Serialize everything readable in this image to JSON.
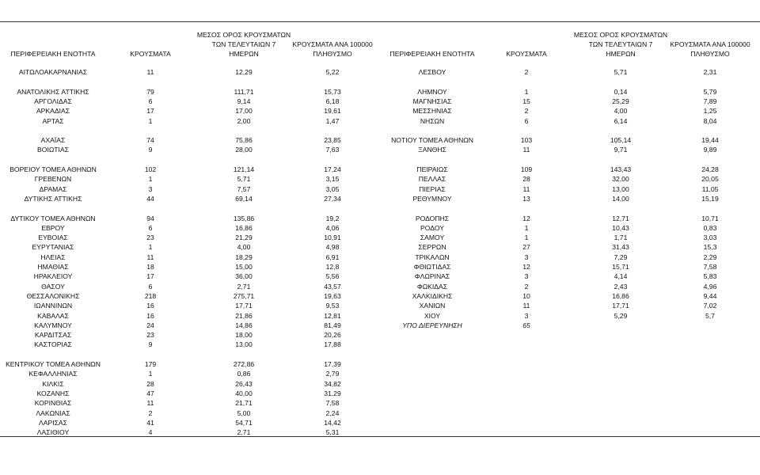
{
  "tables": [
    {
      "header": [
        [
          "ΠΕΡΙΦΕΡΕΙΑΚΗ ΕΝΟΤΗΤΑ"
        ],
        [
          "ΚΡΟΥΣΜΑΤΑ"
        ],
        [
          "ΜΕΣΟΣ ΟΡΟΣ ΚΡΟΥΣΜΑΤΩΝ",
          "ΤΩΝ ΤΕΛΕΥΤΑΙΩΝ 7",
          "ΗΜΕΡΩΝ"
        ],
        [
          "ΚΡΟΥΣΜΑΤΑ ΑΝΑ 100000",
          "ΠΛΗΘΥΣΜΟ"
        ]
      ],
      "groups": [
        [
          [
            "ΑΙΤΩΛΟΑΚΑΡΝΑΝΙΑΣ",
            "11",
            "12,29",
            "5,22"
          ]
        ],
        [
          [
            "ΑΝΑΤΟΛΙΚΗΣ ΑΤΤΙΚΗΣ",
            "79",
            "111,71",
            "15,73"
          ],
          [
            "ΑΡΓΟΛΙΔΑΣ",
            "6",
            "9,14",
            "6,18"
          ],
          [
            "ΑΡΚΑΔΙΑΣ",
            "17",
            "17,00",
            "19,61"
          ],
          [
            "ΑΡΤΑΣ",
            "1",
            "2,00",
            "1,47"
          ]
        ],
        [
          [
            "ΑΧΑΪΑΣ",
            "74",
            "75,86",
            "23,85"
          ],
          [
            "ΒΟΙΩΤΙΑΣ",
            "9",
            "28,00",
            "7,63"
          ]
        ],
        [
          [
            "ΒΟΡΕΙΟΥ ΤΟΜΕΑ ΑΘΗΝΩΝ",
            "102",
            "121,14",
            "17,24"
          ],
          [
            "ΓΡΕΒΕΝΩΝ",
            "1",
            "5,71",
            "3,15"
          ],
          [
            "ΔΡΑΜΑΣ",
            "3",
            "7,57",
            "3,05"
          ],
          [
            "ΔΥΤΙΚΗΣ ΑΤΤΙΚΗΣ",
            "44",
            "69,14",
            "27,34"
          ]
        ],
        [
          [
            "ΔΥΤΙΚΟΥ ΤΟΜΕΑ ΑΘΗΝΩΝ",
            "94",
            "135,86",
            "19,2"
          ],
          [
            "ΕΒΡΟΥ",
            "6",
            "16,86",
            "4,06"
          ],
          [
            "ΕΥΒΟΙΑΣ",
            "23",
            "21,29",
            "10,91"
          ],
          [
            "ΕΥΡΥΤΑΝΙΑΣ",
            "1",
            "4,00",
            "4,98"
          ],
          [
            "ΗΛΕΙΑΣ",
            "11",
            "18,29",
            "6,91"
          ],
          [
            "ΗΜΑΘΙΑΣ",
            "18",
            "15,00",
            "12,8"
          ],
          [
            "ΗΡΑΚΛΕΙΟΥ",
            "17",
            "36,00",
            "5,56"
          ],
          [
            "ΘΑΣΟΥ",
            "6",
            "2,71",
            "43,57"
          ],
          [
            "ΘΕΣΣΑΛΟΝΙΚΗΣ",
            "218",
            "275,71",
            "19,63"
          ],
          [
            "ΙΩΑΝΝΙΝΩΝ",
            "16",
            "17,71",
            "9,53"
          ],
          [
            "ΚΑΒΑΛΑΣ",
            "16",
            "21,86",
            "12,81"
          ],
          [
            "ΚΑΛΥΜΝΟΥ",
            "24",
            "14,86",
            "81,49"
          ],
          [
            "ΚΑΡΔΙΤΣΑΣ",
            "23",
            "18,00",
            "20,26"
          ],
          [
            "ΚΑΣΤΟΡΙΑΣ",
            "9",
            "13,00",
            "17,88"
          ]
        ],
        [
          [
            "ΚΕΝΤΡΙΚΟΥ ΤΟΜΕΑ ΑΘΗΝΩΝ",
            "179",
            "272,86",
            "17,39"
          ],
          [
            "ΚΕΦΑΛΛΗΝΙΑΣ",
            "1",
            "0,86",
            "2,79"
          ],
          [
            "ΚΙΛΚΙΣ",
            "28",
            "26,43",
            "34,82"
          ],
          [
            "ΚΟΖΑΝΗΣ",
            "47",
            "40,00",
            "31,29"
          ],
          [
            "ΚΟΡΙΝΘΙΑΣ",
            "11",
            "21,71",
            "7,58"
          ],
          [
            "ΛΑΚΩΝΙΑΣ",
            "2",
            "5,00",
            "2,24"
          ],
          [
            "ΛΑΡΙΣΑΣ",
            "41",
            "54,71",
            "14,42"
          ],
          [
            "ΛΑΣΙΘΙΟΥ",
            "4",
            "2,71",
            "5,31"
          ]
        ]
      ]
    },
    {
      "header": [
        [
          "ΠΕΡΙΦΕΡΕΙΑΚΗ ΕΝΟΤΗΤΑ"
        ],
        [
          "ΚΡΟΥΣΜΑΤΑ"
        ],
        [
          "ΜΕΣΟΣ ΟΡΟΣ ΚΡΟΥΣΜΑΤΩΝ",
          "ΤΩΝ ΤΕΛΕΥΤΑΙΩΝ 7",
          "ΗΜΕΡΩΝ"
        ],
        [
          "ΚΡΟΥΣΜΑΤΑ ΑΝΑ 100000",
          "ΠΛΗΘΥΣΜΟ"
        ]
      ],
      "groups": [
        [
          [
            "ΛΕΣΒΟΥ",
            "2",
            "5,71",
            "2,31"
          ]
        ],
        [
          [
            "ΛΗΜΝΟΥ",
            "1",
            "0,14",
            "5,79"
          ],
          [
            "ΜΑΓΝΗΣΙΑΣ",
            "15",
            "25,29",
            "7,89"
          ],
          [
            "ΜΕΣΣΗΝΙΑΣ",
            "2",
            "4,00",
            "1,25"
          ],
          [
            "ΝΗΣΩΝ",
            "6",
            "6,14",
            "8,04"
          ]
        ],
        [
          [
            "ΝΟΤΙΟΥ ΤΟΜΕΑ ΑΘΗΝΩΝ",
            "103",
            "105,14",
            "19,44"
          ],
          [
            "ΞΑΝΘΗΣ",
            "11",
            "9,71",
            "9,89"
          ]
        ],
        [
          [
            "ΠΕΙΡΑΙΩΣ",
            "109",
            "143,43",
            "24,28"
          ],
          [
            "ΠΕΛΛΑΣ",
            "28",
            "32,00",
            "20,05"
          ],
          [
            "ΠΙΕΡΙΑΣ",
            "11",
            "13,00",
            "11,05"
          ],
          [
            "ΡΕΘΥΜΝΟΥ",
            "13",
            "14,00",
            "15,19"
          ]
        ],
        [
          [
            "ΡΟΔΟΠΗΣ",
            "12",
            "12,71",
            "10,71"
          ],
          [
            "ΡΟΔΟΥ",
            "1",
            "10,43",
            "0,83"
          ],
          [
            "ΣΑΜΟΥ",
            "1",
            "1,71",
            "3,03"
          ],
          [
            "ΣΕΡΡΩΝ",
            "27",
            "31,43",
            "15,3"
          ],
          [
            "ΤΡΙΚΑΛΩΝ",
            "3",
            "7,29",
            "2,29"
          ],
          [
            "ΦΘΙΩΤΙΔΑΣ",
            "12",
            "15,71",
            "7,58"
          ],
          [
            "ΦΛΩΡΙΝΑΣ",
            "3",
            "4,14",
            "5,83"
          ],
          [
            "ΦΩΚΙΔΑΣ",
            "2",
            "2,43",
            "4,96"
          ],
          [
            "ΧΑΛΚΙΔΙΚΗΣ",
            "10",
            "16,86",
            "9,44"
          ],
          [
            "ΧΑΝΙΩΝ",
            "11",
            "17,71",
            "7,02"
          ],
          [
            "ΧΙΟΥ",
            "3",
            "5,29",
            "5,7"
          ],
          [
            "ΥΠΟ ΔΙΕΡΕΥΝΗΣΗ",
            "65"
          ]
        ]
      ]
    }
  ]
}
